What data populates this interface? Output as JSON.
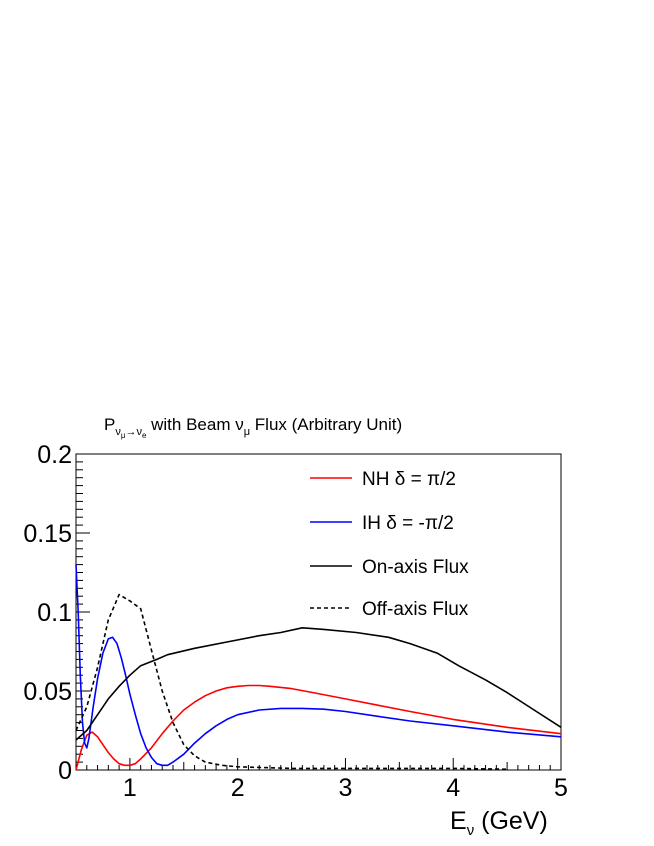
{
  "chart_data": {
    "type": "line",
    "title": {
      "p": "P",
      "sub": "ν",
      "subsub": "μ",
      "arrow": "→",
      "sub2": "ν",
      "subsub2": "e",
      "rest_a": " with Beam ",
      "nu": "ν",
      "nu_sub": "μ",
      "rest_b": " Flux (Arbitrary Unit)"
    },
    "xlabel": {
      "main": "E",
      "sub": "ν",
      "rest": " (GeV)"
    },
    "ylabel": "",
    "xlim": [
      0.5,
      5
    ],
    "ylim": [
      0,
      0.2
    ],
    "xticks": [
      "1",
      "2",
      "3",
      "4",
      "5"
    ],
    "yticks": [
      "0",
      "0.05",
      "0.1",
      "0.15",
      "0.2"
    ],
    "legend_position": "top-right",
    "series": [
      {
        "name": "NH δ =  π/2",
        "color": "#ff0000",
        "dash": "solid",
        "points": [
          [
            0.5,
            0.0
          ],
          [
            0.55,
            0.013
          ],
          [
            0.6,
            0.022
          ],
          [
            0.65,
            0.024
          ],
          [
            0.7,
            0.021
          ],
          [
            0.75,
            0.016
          ],
          [
            0.8,
            0.011
          ],
          [
            0.85,
            0.007
          ],
          [
            0.9,
            0.004
          ],
          [
            0.95,
            0.003
          ],
          [
            1.0,
            0.003
          ],
          [
            1.05,
            0.004
          ],
          [
            1.1,
            0.007
          ],
          [
            1.2,
            0.014
          ],
          [
            1.3,
            0.023
          ],
          [
            1.4,
            0.031
          ],
          [
            1.5,
            0.038
          ],
          [
            1.6,
            0.043
          ],
          [
            1.7,
            0.047
          ],
          [
            1.8,
            0.05
          ],
          [
            1.9,
            0.052
          ],
          [
            2.0,
            0.053
          ],
          [
            2.1,
            0.0535
          ],
          [
            2.2,
            0.0535
          ],
          [
            2.3,
            0.053
          ],
          [
            2.5,
            0.0515
          ],
          [
            2.7,
            0.049
          ],
          [
            3.0,
            0.045
          ],
          [
            3.3,
            0.041
          ],
          [
            3.6,
            0.037
          ],
          [
            4.0,
            0.032
          ],
          [
            4.5,
            0.027
          ],
          [
            5.0,
            0.023
          ]
        ]
      },
      {
        "name": "IH δ = -π/2",
        "color": "#0000ff",
        "dash": "solid",
        "points": [
          [
            0.5,
            0.13
          ],
          [
            0.52,
            0.1
          ],
          [
            0.54,
            0.06
          ],
          [
            0.56,
            0.03
          ],
          [
            0.58,
            0.017
          ],
          [
            0.6,
            0.014
          ],
          [
            0.62,
            0.02
          ],
          [
            0.66,
            0.04
          ],
          [
            0.7,
            0.058
          ],
          [
            0.75,
            0.074
          ],
          [
            0.8,
            0.083
          ],
          [
            0.84,
            0.084
          ],
          [
            0.88,
            0.08
          ],
          [
            0.92,
            0.071
          ],
          [
            0.96,
            0.06
          ],
          [
            1.0,
            0.048
          ],
          [
            1.05,
            0.035
          ],
          [
            1.1,
            0.023
          ],
          [
            1.15,
            0.014
          ],
          [
            1.2,
            0.008
          ],
          [
            1.25,
            0.004
          ],
          [
            1.3,
            0.003
          ],
          [
            1.35,
            0.003
          ],
          [
            1.4,
            0.005
          ],
          [
            1.5,
            0.01
          ],
          [
            1.6,
            0.017
          ],
          [
            1.7,
            0.023
          ],
          [
            1.8,
            0.028
          ],
          [
            1.9,
            0.032
          ],
          [
            2.0,
            0.035
          ],
          [
            2.2,
            0.038
          ],
          [
            2.4,
            0.039
          ],
          [
            2.6,
            0.039
          ],
          [
            2.8,
            0.0385
          ],
          [
            3.0,
            0.037
          ],
          [
            3.3,
            0.034
          ],
          [
            3.6,
            0.031
          ],
          [
            4.0,
            0.028
          ],
          [
            4.5,
            0.024
          ],
          [
            5.0,
            0.021
          ]
        ]
      },
      {
        "name": "On-axis Flux",
        "color": "#000000",
        "dash": "solid",
        "points": [
          [
            0.5,
            0.019
          ],
          [
            0.6,
            0.025
          ],
          [
            0.7,
            0.035
          ],
          [
            0.8,
            0.045
          ],
          [
            0.9,
            0.053
          ],
          [
            1.0,
            0.06
          ],
          [
            1.1,
            0.066
          ],
          [
            1.25,
            0.07
          ],
          [
            1.35,
            0.073
          ],
          [
            1.6,
            0.077
          ],
          [
            1.9,
            0.081
          ],
          [
            2.2,
            0.085
          ],
          [
            2.4,
            0.087
          ],
          [
            2.6,
            0.09
          ],
          [
            2.8,
            0.089
          ],
          [
            3.1,
            0.087
          ],
          [
            3.4,
            0.084
          ],
          [
            3.6,
            0.08
          ],
          [
            3.85,
            0.074
          ],
          [
            4.05,
            0.066
          ],
          [
            4.3,
            0.057
          ],
          [
            4.5,
            0.049
          ],
          [
            4.75,
            0.038
          ],
          [
            5.0,
            0.027
          ]
        ]
      },
      {
        "name": "Off-axis Flux",
        "color": "#000000",
        "dash": "dashed",
        "points": [
          [
            0.5,
            0.025
          ],
          [
            0.6,
            0.04
          ],
          [
            0.7,
            0.065
          ],
          [
            0.8,
            0.095
          ],
          [
            0.9,
            0.111
          ],
          [
            1.0,
            0.107
          ],
          [
            1.1,
            0.102
          ],
          [
            1.2,
            0.076
          ],
          [
            1.3,
            0.05
          ],
          [
            1.4,
            0.03
          ],
          [
            1.5,
            0.016
          ],
          [
            1.6,
            0.009
          ],
          [
            1.7,
            0.005
          ],
          [
            1.85,
            0.003
          ],
          [
            2.0,
            0.002
          ],
          [
            2.5,
            0.001
          ],
          [
            3.0,
            0.001
          ],
          [
            3.5,
            0.001
          ],
          [
            4.0,
            0.001
          ],
          [
            4.5,
            0.0005
          ]
        ]
      }
    ]
  }
}
